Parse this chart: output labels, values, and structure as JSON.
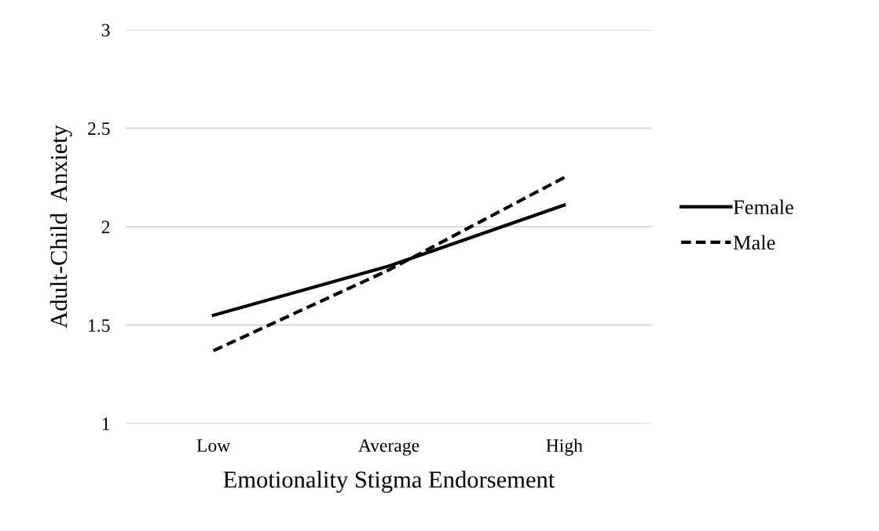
{
  "chart_data": {
    "type": "line",
    "xlabel": "Emotionality Stigma Endorsement",
    "ylabel": "Adult-Child  Anxiety",
    "categories": [
      "Low",
      "Average",
      "High"
    ],
    "series": [
      {
        "name": "Female",
        "color": "#000000",
        "values": [
          1.55,
          1.8,
          2.11
        ],
        "line_style": "solid"
      },
      {
        "name": "Male",
        "color": "#000000",
        "values": [
          1.37,
          1.78,
          2.25
        ],
        "line_style": "dashed"
      }
    ],
    "ylim": [
      1,
      3
    ],
    "yticks": [
      1,
      1.5,
      2,
      2.5,
      3
    ],
    "grid": "y",
    "legend": "right",
    "marker": "none"
  }
}
